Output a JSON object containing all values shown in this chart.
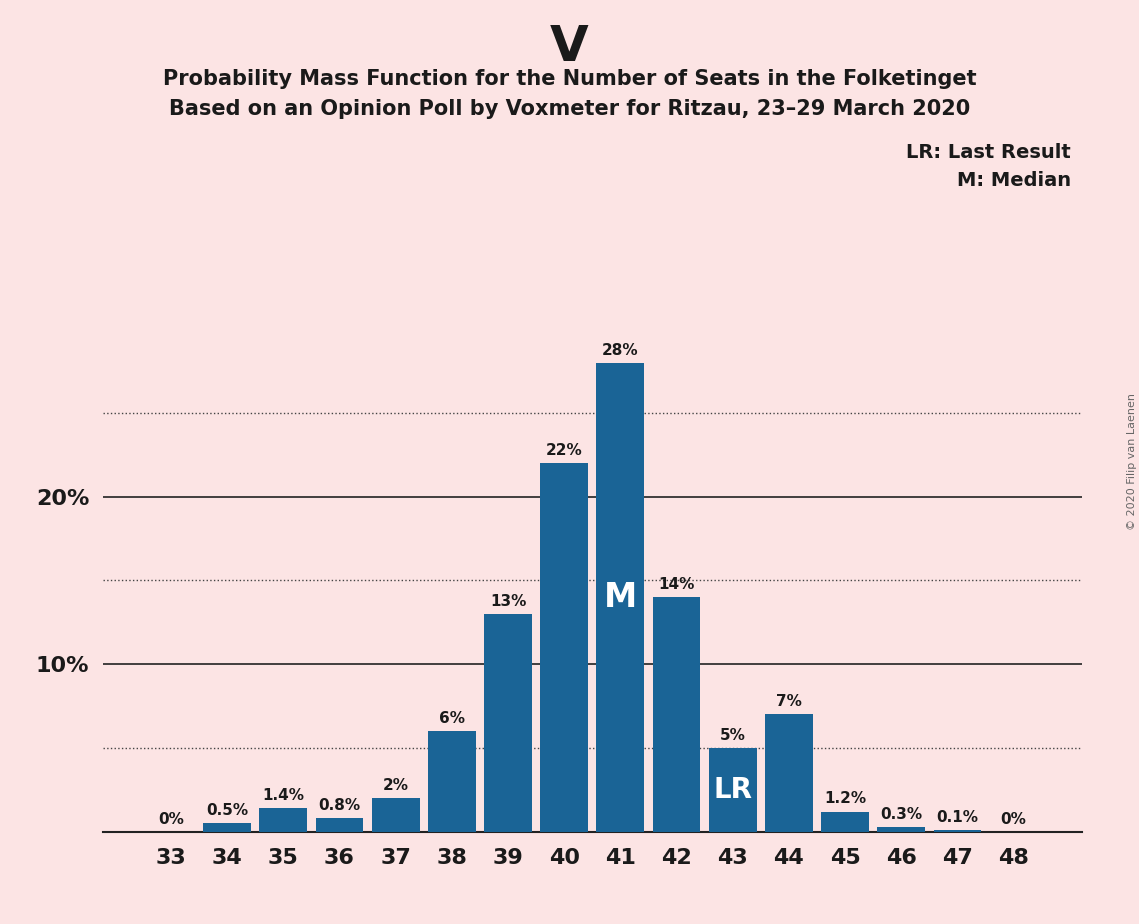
{
  "title_party": "V",
  "title_line1": "Probability Mass Function for the Number of Seats in the Folketinget",
  "title_line2": "Based on an Opinion Poll by Voxmeter for Ritzau, 23–29 March 2020",
  "copyright": "© 2020 Filip van Laenen",
  "legend_lr": "LR: Last Result",
  "legend_m": "M: Median",
  "categories": [
    33,
    34,
    35,
    36,
    37,
    38,
    39,
    40,
    41,
    42,
    43,
    44,
    45,
    46,
    47,
    48
  ],
  "values": [
    0.0,
    0.5,
    1.4,
    0.8,
    2.0,
    6.0,
    13.0,
    22.0,
    28.0,
    14.0,
    5.0,
    7.0,
    1.2,
    0.3,
    0.1,
    0.0
  ],
  "bar_color": "#1a6496",
  "background_color": "#fce4e4",
  "text_color": "#1a1a1a",
  "bar_labels": [
    "0%",
    "0.5%",
    "1.4%",
    "0.8%",
    "2%",
    "6%",
    "13%",
    "22%",
    "28%",
    "14%",
    "5%",
    "7%",
    "1.2%",
    "0.3%",
    "0.1%",
    "0%"
  ],
  "median_seat": 41,
  "lr_seat": 43,
  "dotted_yticks": [
    5,
    15,
    25
  ],
  "solid_yticks": [
    10,
    20
  ],
  "ymax": 32,
  "ytick_labels": {
    "10": "10%",
    "20": "20%"
  }
}
